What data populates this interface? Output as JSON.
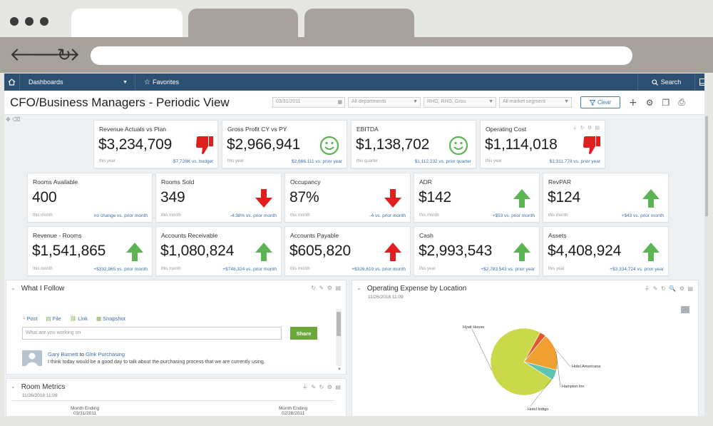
{
  "browser": {
    "tabs": [
      "",
      "",
      ""
    ],
    "url": ""
  },
  "colors": {
    "navbar": "#2c4f72",
    "up_arrow": "#5ab552",
    "down_arrow": "#e01e1e",
    "smiley": "#5ab552",
    "link": "#3a6fa8",
    "share": "#6aa83a"
  },
  "navbar": {
    "dashboards_label": "Dashboards",
    "favorites_label": "Favorites",
    "search_label": "Search"
  },
  "header": {
    "title": "CFO/Business Managers - Periodic View",
    "filters": [
      "03/31/2011",
      "All departments",
      "RHG, RHG, Grou",
      "All market segment"
    ],
    "clear_label": "Clear"
  },
  "kpi_row1": [
    {
      "title": "Revenue Actuals vs Plan",
      "value": "$3,234,709",
      "period": "this year",
      "change": "-$7,728K vs. budget",
      "icon": "thumbs-down-icon"
    },
    {
      "title": "Gross Profit CY vs PY",
      "value": "$2,966,941",
      "period": "this year",
      "change": "$2,666,111 vs. prior year",
      "icon": "smiley-icon"
    },
    {
      "title": "EBITDA",
      "value": "$1,138,702",
      "period": "this quarter",
      "change": "$1,112,232 vs. prior quarter",
      "icon": "smiley-icon"
    },
    {
      "title": "Operating Cost",
      "value": "$1,114,018",
      "period": "this year",
      "change": "$1,311,778 vs. prior year",
      "icon": "thumbs-down-icon"
    }
  ],
  "kpi_row2": [
    {
      "title": "Rooms Available",
      "value": "400",
      "period": "this month",
      "change": "no change vs. prior month",
      "icon": "none"
    },
    {
      "title": "Rooms Sold",
      "value": "349",
      "period": "this month",
      "change": "-4.38% vs. prior month",
      "icon": "arrow-down-icon"
    },
    {
      "title": "Occupancy",
      "value": "87%",
      "period": "this month",
      "change": "-4 vs. prior month",
      "icon": "arrow-down-icon"
    },
    {
      "title": "ADR",
      "value": "$142",
      "period": "this month",
      "change": "+$53 vs. prior month",
      "icon": "arrow-up-icon"
    },
    {
      "title": "RevPAR",
      "value": "$124",
      "period": "this month",
      "change": "+$43 vs. prior month",
      "icon": "arrow-up-icon"
    }
  ],
  "kpi_row3": [
    {
      "title": "Revenue - Rooms",
      "value": "$1,541,865",
      "period": "this month",
      "change": "+$332,965 vs. prior month",
      "icon": "arrow-up-icon"
    },
    {
      "title": "Accounts Receivable",
      "value": "$1,080,824",
      "period": "this month",
      "change": "+$748,324 vs. prior month",
      "icon": "arrow-up-icon"
    },
    {
      "title": "Accounts Payable",
      "value": "$605,820",
      "period": "this month",
      "change": "+$326,610 vs. prior month",
      "icon": "arrow-up-red-icon"
    },
    {
      "title": "Cash",
      "value": "$2,993,543",
      "period": "this year",
      "change": "+$2,783,543 vs. prior year",
      "icon": "arrow-up-icon"
    },
    {
      "title": "Assets",
      "value": "$4,408,924",
      "period": "this year",
      "change": "+$3,334,724 vs. prior year",
      "icon": "arrow-up-icon"
    }
  ],
  "follow_panel": {
    "title": "What I Follow",
    "tabs": [
      "Post",
      "File",
      "Link",
      "Snapshot"
    ],
    "input_placeholder": "What are you working on",
    "share_label": "Share",
    "post_author": "Gary Burnett",
    "post_to": "to",
    "post_group": "Glnk Purchasing",
    "post_message": "I think today would be a good day to talk about the purchasing process that we are currently using."
  },
  "room_metrics": {
    "title": "Room Metrics",
    "timestamp": "11/26/2018 11:09",
    "col1_label": "Month Ending",
    "col1_date": "03/31/2011",
    "col2_label": "Month Ending",
    "col2_date": "02/28/2011"
  },
  "opex_panel": {
    "title": "Operating Expense by Location",
    "timestamp": "11/26/2018 11:09"
  },
  "chart_data": {
    "type": "pie",
    "title": "Operating Expense by Location",
    "labels": [
      "Hyatt House",
      "Hotel Americana",
      "Hampton Inn",
      "Hotel Indigo"
    ],
    "values": [
      74,
      3,
      18,
      5
    ],
    "colors": [
      "#c9d94a",
      "#e4572e",
      "#f0a030",
      "#5cc4b0"
    ]
  }
}
